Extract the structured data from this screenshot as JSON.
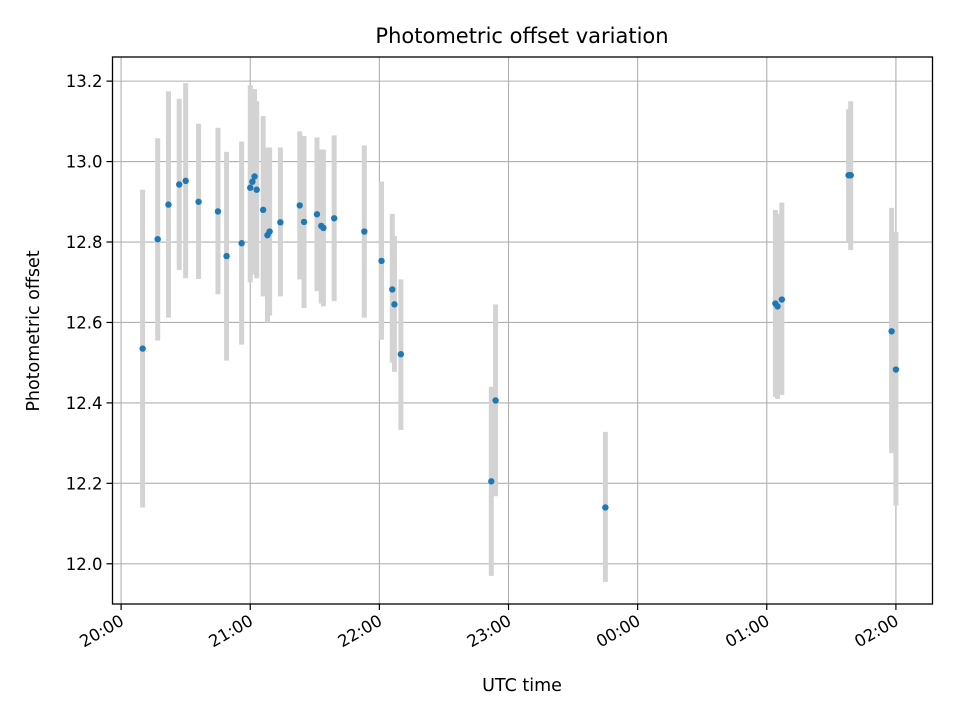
{
  "chart_data": {
    "type": "scatter",
    "title": "Photometric offset variation",
    "xlabel": "UTC time",
    "ylabel": "Photometric offset",
    "x_axis_type": "time",
    "xlim": [
      "19:56",
      "02:17"
    ],
    "ylim": [
      11.9,
      13.26
    ],
    "x_ticks": [
      "20:00",
      "21:00",
      "22:00",
      "23:00",
      "00:00",
      "01:00",
      "02:00"
    ],
    "y_ticks": [
      "12.0",
      "12.2",
      "12.4",
      "12.6",
      "12.8",
      "13.0",
      "13.2"
    ],
    "grid": true,
    "legend": "none",
    "colors": {
      "points": "#1f77b4",
      "error_bars": "#d3d3d3"
    },
    "points": [
      {
        "t": "20:10",
        "y": 12.535,
        "lo": 12.14,
        "hi": 12.93
      },
      {
        "t": "20:17",
        "y": 12.807,
        "lo": 12.555,
        "hi": 13.058
      },
      {
        "t": "20:22",
        "y": 12.893,
        "lo": 12.612,
        "hi": 13.175
      },
      {
        "t": "20:27",
        "y": 12.943,
        "lo": 12.73,
        "hi": 13.156
      },
      {
        "t": "20:30",
        "y": 12.952,
        "lo": 12.71,
        "hi": 13.195
      },
      {
        "t": "20:36",
        "y": 12.9,
        "lo": 12.708,
        "hi": 13.094
      },
      {
        "t": "20:45",
        "y": 12.876,
        "lo": 12.67,
        "hi": 13.084
      },
      {
        "t": "20:49",
        "y": 12.765,
        "lo": 12.505,
        "hi": 13.024
      },
      {
        "t": "20:56",
        "y": 12.797,
        "lo": 12.545,
        "hi": 13.05
      },
      {
        "t": "21:00",
        "y": 12.935,
        "lo": 12.7,
        "hi": 13.19
      },
      {
        "t": "21:01",
        "y": 12.95,
        "lo": 12.72,
        "hi": 13.18
      },
      {
        "t": "21:02",
        "y": 12.963,
        "lo": 12.74,
        "hi": 13.18
      },
      {
        "t": "21:03",
        "y": 12.93,
        "lo": 12.71,
        "hi": 13.15
      },
      {
        "t": "21:06",
        "y": 12.88,
        "lo": 12.665,
        "hi": 13.113
      },
      {
        "t": "21:08",
        "y": 12.817,
        "lo": 12.6,
        "hi": 13.035
      },
      {
        "t": "21:09",
        "y": 12.826,
        "lo": 12.617,
        "hi": 13.035
      },
      {
        "t": "21:14",
        "y": 12.849,
        "lo": 12.665,
        "hi": 13.035
      },
      {
        "t": "21:23",
        "y": 12.891,
        "lo": 12.707,
        "hi": 13.075
      },
      {
        "t": "21:25",
        "y": 12.85,
        "lo": 12.636,
        "hi": 13.064
      },
      {
        "t": "21:31",
        "y": 12.869,
        "lo": 12.678,
        "hi": 13.06
      },
      {
        "t": "21:33",
        "y": 12.84,
        "lo": 12.647,
        "hi": 13.03
      },
      {
        "t": "21:34",
        "y": 12.835,
        "lo": 12.64,
        "hi": 13.03
      },
      {
        "t": "21:39",
        "y": 12.859,
        "lo": 12.653,
        "hi": 13.065
      },
      {
        "t": "21:53",
        "y": 12.826,
        "lo": 12.612,
        "hi": 13.04
      },
      {
        "t": "22:01",
        "y": 12.753,
        "lo": 12.557,
        "hi": 12.95
      },
      {
        "t": "22:06",
        "y": 12.682,
        "lo": 12.5,
        "hi": 12.87
      },
      {
        "t": "22:07",
        "y": 12.645,
        "lo": 12.477,
        "hi": 12.815
      },
      {
        "t": "22:10",
        "y": 12.521,
        "lo": 12.333,
        "hi": 12.707
      },
      {
        "t": "22:52",
        "y": 12.205,
        "lo": 11.97,
        "hi": 12.44
      },
      {
        "t": "22:54",
        "y": 12.406,
        "lo": 12.168,
        "hi": 12.645
      },
      {
        "t": "23:45",
        "y": 12.14,
        "lo": 11.955,
        "hi": 12.328
      },
      {
        "t": "01:04",
        "y": 12.647,
        "lo": 12.415,
        "hi": 12.88
      },
      {
        "t": "01:05",
        "y": 12.64,
        "lo": 12.41,
        "hi": 12.87
      },
      {
        "t": "01:07",
        "y": 12.657,
        "lo": 12.42,
        "hi": 12.898
      },
      {
        "t": "01:38",
        "y": 12.966,
        "lo": 12.8,
        "hi": 13.13
      },
      {
        "t": "01:39",
        "y": 12.966,
        "lo": 12.78,
        "hi": 13.15
      },
      {
        "t": "01:58",
        "y": 12.578,
        "lo": 12.275,
        "hi": 12.885
      },
      {
        "t": "02:00",
        "y": 12.483,
        "lo": 12.145,
        "hi": 12.825
      }
    ]
  }
}
